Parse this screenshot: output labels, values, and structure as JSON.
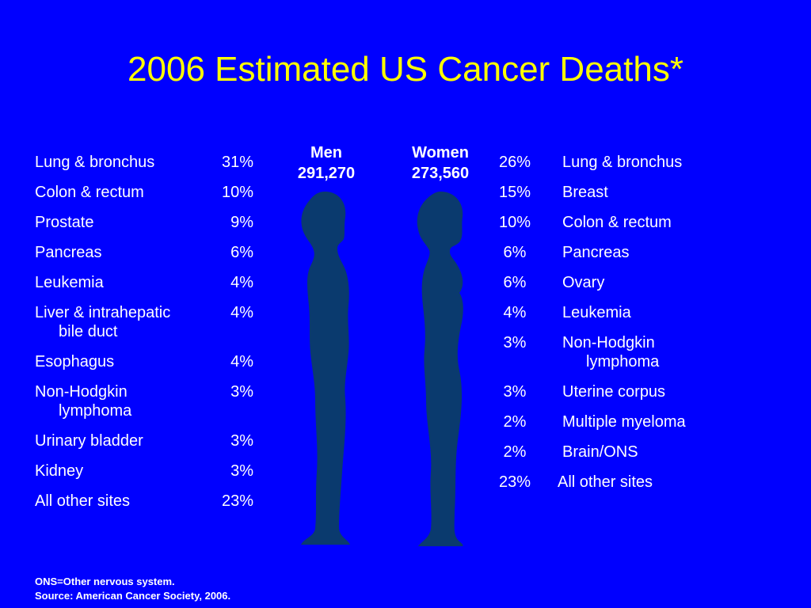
{
  "title": "2006 Estimated US Cancer Deaths*",
  "men": {
    "label": "Men",
    "total": "291,270",
    "rows": [
      {
        "site": "Lung & bronchus",
        "pct": "31%"
      },
      {
        "site": "Colon & rectum",
        "pct": "10%"
      },
      {
        "site": "Prostate",
        "pct": "9%"
      },
      {
        "site": "Pancreas",
        "pct": "6%"
      },
      {
        "site": "Leukemia",
        "pct": "4%"
      },
      {
        "site": "Liver & intrahepatic",
        "site2": "bile duct",
        "pct": "4%"
      },
      {
        "site": "Esophagus",
        "pct": "4%"
      },
      {
        "site": "Non-Hodgkin",
        "site2": "lymphoma",
        "pct": "3%"
      },
      {
        "site": "Urinary bladder",
        "pct": "3%"
      },
      {
        "site": "Kidney",
        "pct": "3%"
      },
      {
        "site": "All other sites",
        "pct": "23%"
      }
    ]
  },
  "women": {
    "label": "Women",
    "total": "273,560",
    "rows": [
      {
        "pct": "26%",
        "site": "Lung & bronchus"
      },
      {
        "pct": "15%",
        "site": "Breast"
      },
      {
        "pct": "10%",
        "site": "Colon & rectum"
      },
      {
        "pct": "6%",
        "site": "Pancreas"
      },
      {
        "pct": "6%",
        "site": "Ovary"
      },
      {
        "pct": "4%",
        "site": "Leukemia"
      },
      {
        "pct": "3%",
        "site": "Non-Hodgkin",
        "site2": "lymphoma"
      },
      {
        "pct": "3%",
        "site": "Uterine corpus"
      },
      {
        "pct": "2%",
        "site": "Multiple myeloma"
      },
      {
        "pct": "2%",
        "site": "Brain/ONS"
      },
      {
        "pct": "23%",
        "site": "All other sites"
      }
    ]
  },
  "footnote": {
    "line1": "ONS=Other nervous system.",
    "line2": "Source: American Cancer Society, 2006."
  },
  "colors": {
    "background": "#0000ff",
    "title": "#ffff00",
    "text": "#ffffff",
    "silhouette": "#0a3a6e"
  }
}
